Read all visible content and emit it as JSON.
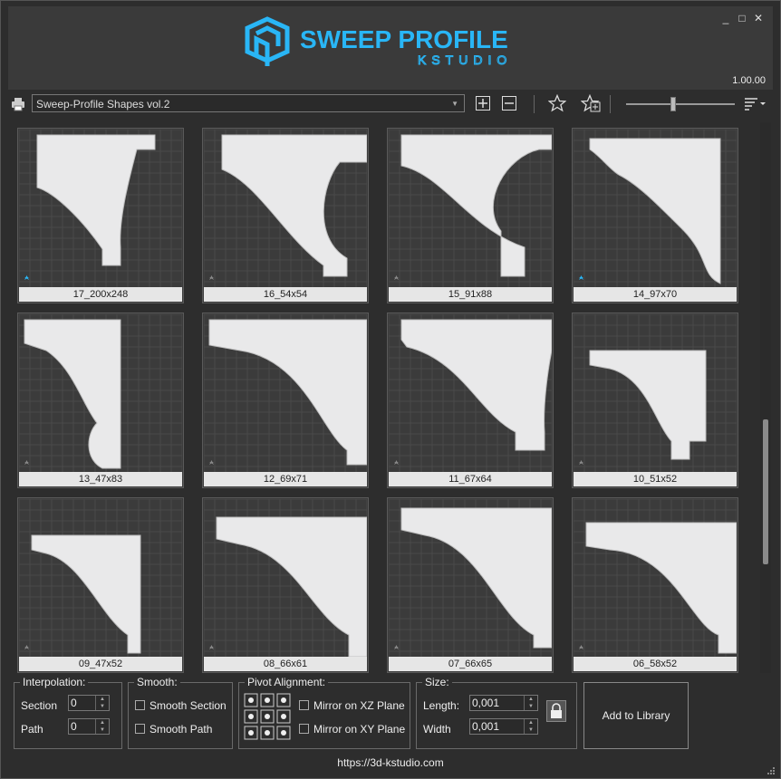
{
  "app": {
    "title_main": "SWEEP PROFILE",
    "title_sub": "KSTUDIO",
    "version": "1.00.00",
    "accent": "#29b6f6",
    "window_controls": [
      "_",
      "□",
      "✕"
    ]
  },
  "toolbar": {
    "library_selected": "Sweep-Profile Shapes vol.2",
    "icons": [
      "printer-icon",
      "add-icon",
      "remove-icon",
      "star-icon",
      "star-add-icon",
      "sort-menu-icon"
    ]
  },
  "shapes": [
    {
      "label": "17_200x248"
    },
    {
      "label": "16_54x54"
    },
    {
      "label": "15_91x88"
    },
    {
      "label": "14_97x70"
    },
    {
      "label": "13_47x83"
    },
    {
      "label": "12_69x71"
    },
    {
      "label": "11_67x64"
    },
    {
      "label": "10_51x52"
    },
    {
      "label": "09_47x52"
    },
    {
      "label": "08_66x61"
    },
    {
      "label": "07_66x65"
    },
    {
      "label": "06_58x52"
    }
  ],
  "interpolation": {
    "title": "Interpolation:",
    "section_label": "Section",
    "section_value": "0",
    "path_label": "Path",
    "path_value": "0"
  },
  "smooth": {
    "title": "Smooth:",
    "section_label": "Smooth Section",
    "path_label": "Smooth Path"
  },
  "pivot": {
    "title": "Pivot Alignment:",
    "mirror_xz": "Mirror on XZ Plane",
    "mirror_xy": "Mirror on XY Plane"
  },
  "size": {
    "title": "Size:",
    "length_label": "Length:",
    "length_value": "0,001",
    "width_label": "Width",
    "width_value": "0,001"
  },
  "add_button": "Add to Library",
  "footer_url": "https://3d-kstudio.com"
}
